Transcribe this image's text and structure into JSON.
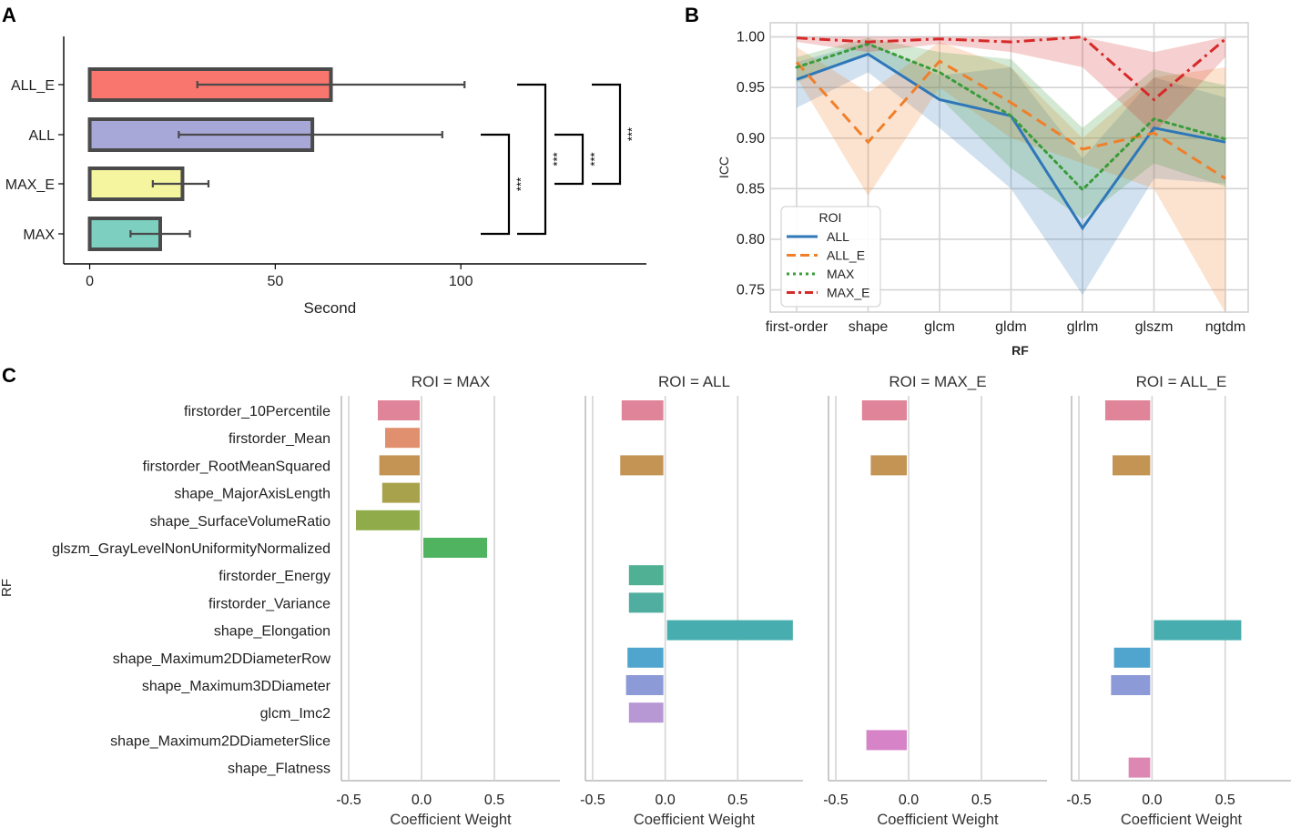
{
  "chart_data": [
    {
      "panel": "A",
      "type": "bar",
      "orientation": "horizontal",
      "categories": [
        "ALL_E",
        "ALL",
        "MAX_E",
        "MAX"
      ],
      "values": [
        65,
        60,
        25,
        19
      ],
      "error": [
        [
          29,
          101
        ],
        [
          24,
          95
        ],
        [
          17,
          32
        ],
        [
          11,
          27
        ]
      ],
      "colors": [
        "#f8766d",
        "#a8a8d8",
        "#f5f5a0",
        "#7dd0c0"
      ],
      "xlabel": "Second",
      "xticks": [
        0,
        50,
        100
      ],
      "xlim": [
        -7,
        150
      ],
      "significance": [
        {
          "from": "MAX",
          "to": "ALL",
          "label": "***"
        },
        {
          "from": "MAX",
          "to": "ALL_E",
          "label": "***"
        },
        {
          "from": "MAX_E",
          "to": "ALL",
          "label": "***"
        },
        {
          "from": "MAX_E",
          "to": "ALL_E",
          "label": "***"
        }
      ]
    },
    {
      "panel": "B",
      "type": "line",
      "x": [
        "first-order",
        "shape",
        "glcm",
        "gldm",
        "glrlm",
        "glszm",
        "ngtdm"
      ],
      "xlabel": "RF",
      "ylabel": "ICC",
      "ylim": [
        0.728,
        1.014
      ],
      "yticks": [
        "0.75",
        "0.80",
        "0.85",
        "0.90",
        "0.95",
        "1.00"
      ],
      "legend_title": "ROI",
      "legend_position": "bottom-left",
      "series": [
        {
          "name": "ALL",
          "color": "#2e77b8",
          "dash": "solid",
          "values": [
            0.958,
            0.983,
            0.938,
            0.922,
            0.811,
            0.91,
            0.896
          ],
          "lower": [
            0.93,
            0.965,
            0.91,
            0.85,
            0.745,
            0.86,
            0.855
          ],
          "upper": [
            0.975,
            0.995,
            0.962,
            0.97,
            0.88,
            0.96,
            0.94
          ]
        },
        {
          "name": "ALL_E",
          "color": "#f07f2a",
          "dash": "dashed",
          "values": [
            0.975,
            0.896,
            0.976,
            0.935,
            0.889,
            0.905,
            0.86
          ],
          "lower": [
            0.96,
            0.843,
            0.95,
            0.9,
            0.875,
            0.85,
            0.727
          ],
          "upper": [
            0.99,
            0.945,
            0.995,
            0.97,
            0.9,
            0.96,
            0.97
          ]
        },
        {
          "name": "MAX",
          "color": "#3a9c3a",
          "dash": "dotted",
          "values": [
            0.97,
            0.993,
            0.965,
            0.922,
            0.849,
            0.919,
            0.899
          ],
          "lower": [
            0.955,
            0.985,
            0.94,
            0.87,
            0.82,
            0.875,
            0.852
          ],
          "upper": [
            0.98,
            0.999,
            0.985,
            0.978,
            0.91,
            0.968,
            0.952
          ]
        },
        {
          "name": "MAX_E",
          "color": "#d62a2a",
          "dash": "dashdot",
          "values": [
            0.999,
            0.995,
            0.998,
            0.995,
            1.0,
            0.938,
            0.998
          ],
          "lower": [
            0.995,
            0.985,
            0.993,
            0.985,
            0.97,
            0.905,
            0.98
          ],
          "upper": [
            1.0,
            1.0,
            1.0,
            1.0,
            1.0,
            0.985,
            1.0
          ]
        }
      ]
    },
    {
      "panel": "C",
      "type": "bar",
      "orientation": "horizontal",
      "facet_by": "ROI",
      "ylabel": "RF",
      "xlabel": "Coefficient Weight",
      "xticks": [
        "-0.5",
        "0.0",
        "0.5"
      ],
      "categories": [
        "firstorder_10Percentile",
        "firstorder_Mean",
        "firstorder_RootMeanSquared",
        "shape_MajorAxisLength",
        "shape_SurfaceVolumeRatio",
        "glszm_GrayLevelNonUniformityNormalized",
        "firstorder_Energy",
        "firstorder_Variance",
        "shape_Elongation",
        "shape_Maximum2DDiameterRow",
        "shape_Maximum3DDiameter",
        "glcm_Imc2",
        "shape_Maximum2DDiameterSlice",
        "shape_Flatness"
      ],
      "category_colors": [
        "#e0849a",
        "#e0906e",
        "#c49455",
        "#a9a24d",
        "#90ac4a",
        "#4fb360",
        "#4fb093",
        "#4fae9f",
        "#47adae",
        "#4fa5cd",
        "#8d9ad8",
        "#b797d4",
        "#d683c8",
        "#dc88b3"
      ],
      "facets": [
        {
          "title": "ROI = MAX",
          "xlim": [
            -0.55,
            0.95
          ],
          "values": [
            -0.3,
            -0.25,
            -0.29,
            -0.27,
            -0.45,
            0.45,
            null,
            null,
            null,
            null,
            null,
            null,
            null,
            null
          ]
        },
        {
          "title": "ROI = ALL",
          "xlim": [
            -0.55,
            0.95
          ],
          "values": [
            -0.3,
            null,
            -0.31,
            null,
            null,
            null,
            -0.25,
            -0.25,
            0.88,
            -0.26,
            -0.27,
            -0.25,
            null,
            null
          ]
        },
        {
          "title": "ROI = MAX_E",
          "xlim": [
            -0.55,
            0.95
          ],
          "values": [
            -0.32,
            null,
            -0.26,
            null,
            null,
            null,
            null,
            null,
            null,
            null,
            null,
            null,
            -0.29,
            null
          ]
        },
        {
          "title": "ROI = ALL_E",
          "xlim": [
            -0.55,
            0.95
          ],
          "values": [
            -0.32,
            null,
            -0.27,
            null,
            null,
            null,
            null,
            null,
            0.61,
            -0.26,
            -0.28,
            null,
            null,
            -0.16
          ]
        }
      ]
    }
  ]
}
